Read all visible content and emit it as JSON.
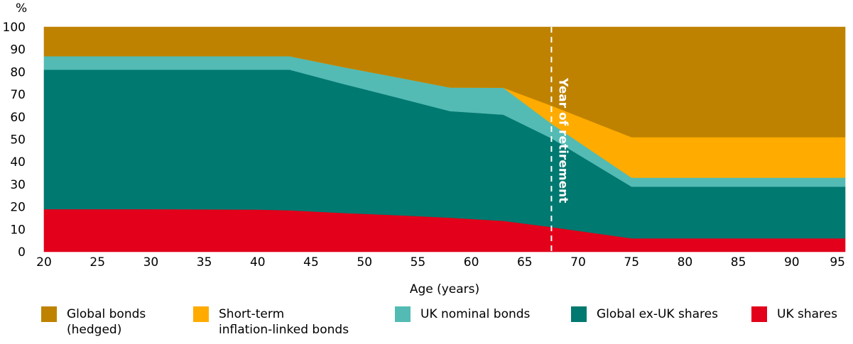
{
  "chart_data": {
    "type": "area",
    "stacked": true,
    "unit_label": "%",
    "xlabel": "Age (years)",
    "ylabel": "",
    "xlim": [
      20,
      95
    ],
    "ylim": [
      0,
      100
    ],
    "x_ticks": [
      20,
      25,
      30,
      35,
      40,
      45,
      50,
      55,
      60,
      65,
      70,
      75,
      80,
      85,
      90,
      95
    ],
    "y_ticks": [
      0,
      10,
      20,
      30,
      40,
      50,
      60,
      70,
      80,
      90,
      100
    ],
    "x": [
      20,
      30,
      40,
      43,
      48,
      53,
      58,
      63,
      67.5,
      75,
      80,
      85,
      90,
      95
    ],
    "series": [
      {
        "name": "UK shares",
        "color": "#e2001a",
        "values": [
          19,
          19,
          18.8,
          18.5,
          17.3,
          16.3,
          15.2,
          13.8,
          11,
          6,
          6,
          6,
          6,
          6
        ]
      },
      {
        "name": "Global ex-UK shares",
        "color": "#007970",
        "values": [
          62,
          62,
          62.2,
          62.5,
          57.4,
          52.4,
          47.4,
          47.2,
          39.5,
          23,
          23,
          23,
          23,
          23
        ]
      },
      {
        "name": "UK nominal bonds",
        "color": "#53bbb4",
        "values": [
          6,
          6,
          6,
          6,
          7.5,
          9,
          10.5,
          12,
          6.5,
          4,
          4,
          4,
          4,
          4
        ]
      },
      {
        "name": "Short-term\ninflation-linked bonds",
        "color": "#ffab00",
        "values": [
          0,
          0,
          0,
          0,
          0,
          0,
          0,
          0,
          8,
          18,
          18,
          18,
          18,
          18
        ]
      },
      {
        "name": "Global bonds\n(hedged)",
        "color": "#bf8200",
        "values": [
          13,
          13,
          13,
          13,
          17.8,
          22.3,
          26.9,
          27,
          35,
          49,
          49,
          49,
          49,
          49
        ]
      }
    ],
    "annotations": [
      {
        "type": "vline",
        "x": 67.5,
        "style": "dashed",
        "color": "#ffffff",
        "label": "Year of retirement"
      }
    ],
    "legend": {
      "placement": "bottom",
      "order": [
        "Global bonds\n(hedged)",
        "Short-term\ninflation-linked bonds",
        "UK nominal bonds",
        "Global ex-UK shares",
        "UK shares"
      ]
    },
    "grid": false
  }
}
